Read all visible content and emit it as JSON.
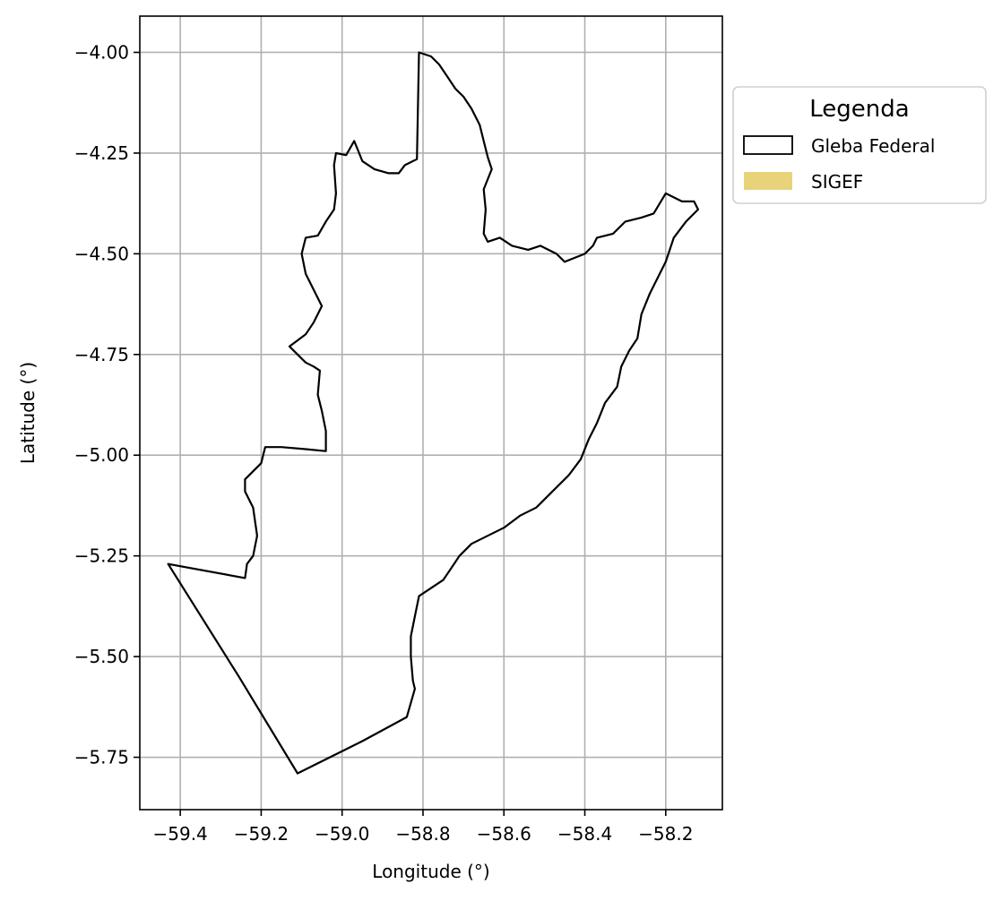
{
  "chart_data": {
    "type": "map",
    "xlabel": "Longitude (°)",
    "ylabel": "Latitude (°)",
    "xlim": [
      -59.5,
      -58.06
    ],
    "ylim": [
      -5.88,
      -3.91
    ],
    "grid": true,
    "x_ticks": [
      -59.4,
      -59.2,
      -59.0,
      -58.8,
      -58.6,
      -58.4,
      -58.2
    ],
    "x_tick_labels": [
      "−59.4",
      "−59.2",
      "−59.0",
      "−58.8",
      "−58.6",
      "−58.4",
      "−58.2"
    ],
    "y_ticks": [
      -4.0,
      -4.25,
      -4.5,
      -4.75,
      -5.0,
      -5.25,
      -5.5,
      -5.75
    ],
    "y_tick_labels": [
      "−4.00",
      "−4.25",
      "−4.50",
      "−4.75",
      "−5.00",
      "−5.25",
      "−5.50",
      "−5.75"
    ],
    "legend": {
      "title": "Legenda",
      "placement": "outside-right-top",
      "entries": [
        {
          "label": "Gleba Federal",
          "style": "outline",
          "color": "#000000"
        },
        {
          "label": "SIGEF",
          "style": "fill",
          "color": "#e8d37a"
        }
      ]
    },
    "series": [
      {
        "name": "Gleba Federal",
        "kind": "polygon",
        "color": "#000000",
        "points": [
          [
            -58.81,
            -4.0
          ],
          [
            -58.78,
            -4.01
          ],
          [
            -58.76,
            -4.03
          ],
          [
            -58.74,
            -4.06
          ],
          [
            -58.72,
            -4.09
          ],
          [
            -58.7,
            -4.11
          ],
          [
            -58.68,
            -4.14
          ],
          [
            -58.66,
            -4.18
          ],
          [
            -58.65,
            -4.22
          ],
          [
            -58.64,
            -4.26
          ],
          [
            -58.63,
            -4.29
          ],
          [
            -58.65,
            -4.34
          ],
          [
            -58.645,
            -4.39
          ],
          [
            -58.65,
            -4.45
          ],
          [
            -58.64,
            -4.47
          ],
          [
            -58.61,
            -4.46
          ],
          [
            -58.58,
            -4.48
          ],
          [
            -58.54,
            -4.49
          ],
          [
            -58.51,
            -4.48
          ],
          [
            -58.47,
            -4.5
          ],
          [
            -58.45,
            -4.52
          ],
          [
            -58.4,
            -4.5
          ],
          [
            -58.38,
            -4.48
          ],
          [
            -58.37,
            -4.46
          ],
          [
            -58.33,
            -4.45
          ],
          [
            -58.3,
            -4.42
          ],
          [
            -58.26,
            -4.41
          ],
          [
            -58.23,
            -4.4
          ],
          [
            -58.2,
            -4.35
          ],
          [
            -58.16,
            -4.37
          ],
          [
            -58.13,
            -4.37
          ],
          [
            -58.12,
            -4.39
          ],
          [
            -58.15,
            -4.42
          ],
          [
            -58.18,
            -4.46
          ],
          [
            -58.2,
            -4.52
          ],
          [
            -58.22,
            -4.56
          ],
          [
            -58.24,
            -4.6
          ],
          [
            -58.26,
            -4.65
          ],
          [
            -58.27,
            -4.71
          ],
          [
            -58.29,
            -4.74
          ],
          [
            -58.31,
            -4.78
          ],
          [
            -58.32,
            -4.83
          ],
          [
            -58.35,
            -4.87
          ],
          [
            -58.37,
            -4.92
          ],
          [
            -58.39,
            -4.96
          ],
          [
            -58.41,
            -5.01
          ],
          [
            -58.44,
            -5.05
          ],
          [
            -58.48,
            -5.09
          ],
          [
            -58.52,
            -5.13
          ],
          [
            -58.56,
            -5.15
          ],
          [
            -58.6,
            -5.18
          ],
          [
            -58.64,
            -5.2
          ],
          [
            -58.68,
            -5.22
          ],
          [
            -58.71,
            -5.25
          ],
          [
            -58.73,
            -5.28
          ],
          [
            -58.75,
            -5.31
          ],
          [
            -58.78,
            -5.33
          ],
          [
            -58.81,
            -5.35
          ],
          [
            -58.82,
            -5.4
          ],
          [
            -58.83,
            -5.45
          ],
          [
            -58.83,
            -5.5
          ],
          [
            -58.825,
            -5.56
          ],
          [
            -58.82,
            -5.58
          ],
          [
            -58.84,
            -5.65
          ],
          [
            -58.95,
            -5.71
          ],
          [
            -59.11,
            -5.79
          ],
          [
            -59.255,
            -5.55
          ],
          [
            -59.43,
            -5.27
          ],
          [
            -59.24,
            -5.305
          ],
          [
            -59.235,
            -5.27
          ],
          [
            -59.22,
            -5.25
          ],
          [
            -59.21,
            -5.2
          ],
          [
            -59.22,
            -5.13
          ],
          [
            -59.24,
            -5.09
          ],
          [
            -59.24,
            -5.06
          ],
          [
            -59.22,
            -5.04
          ],
          [
            -59.2,
            -5.02
          ],
          [
            -59.19,
            -4.98
          ],
          [
            -59.15,
            -4.98
          ],
          [
            -59.09,
            -4.985
          ],
          [
            -59.04,
            -4.99
          ],
          [
            -59.04,
            -4.94
          ],
          [
            -59.05,
            -4.89
          ],
          [
            -59.06,
            -4.85
          ],
          [
            -59.055,
            -4.79
          ],
          [
            -59.07,
            -4.78
          ],
          [
            -59.09,
            -4.77
          ],
          [
            -59.11,
            -4.75
          ],
          [
            -59.13,
            -4.73
          ],
          [
            -59.09,
            -4.7
          ],
          [
            -59.07,
            -4.67
          ],
          [
            -59.05,
            -4.63
          ],
          [
            -59.07,
            -4.59
          ],
          [
            -59.09,
            -4.55
          ],
          [
            -59.1,
            -4.5
          ],
          [
            -59.09,
            -4.46
          ],
          [
            -59.06,
            -4.455
          ],
          [
            -59.04,
            -4.42
          ],
          [
            -59.02,
            -4.39
          ],
          [
            -59.015,
            -4.35
          ],
          [
            -59.02,
            -4.28
          ],
          [
            -59.015,
            -4.25
          ],
          [
            -58.99,
            -4.255
          ],
          [
            -58.97,
            -4.22
          ],
          [
            -58.95,
            -4.27
          ],
          [
            -58.92,
            -4.29
          ],
          [
            -58.885,
            -4.3
          ],
          [
            -58.86,
            -4.3
          ],
          [
            -58.845,
            -4.28
          ],
          [
            -58.815,
            -4.265
          ],
          [
            -58.81,
            -4.0
          ]
        ]
      }
    ]
  }
}
